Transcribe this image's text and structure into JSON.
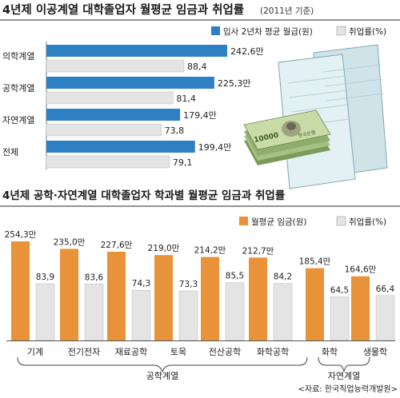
{
  "chart_data": [
    {
      "type": "bar",
      "orientation": "horizontal",
      "title": "4년제 이공계열 대학졸업자 월평균 임금과 취업률",
      "title_note": "(2011년 기준)",
      "categories": [
        "의학계열",
        "공학계열",
        "자연계열",
        "전체"
      ],
      "series": [
        {
          "name": "입사 2년차 평균 월급(원)",
          "values": [
            242.6,
            225.3,
            179.4,
            199.4
          ],
          "labels": [
            "242,6만",
            "225,3만",
            "179,4만",
            "199,4만"
          ],
          "color": "#2f7fc4"
        },
        {
          "name": "취업률(%)",
          "values": [
            88.4,
            81.4,
            73.8,
            79.1
          ],
          "labels": [
            "88,4",
            "81,4",
            "73,8",
            "79,1"
          ],
          "color": "#e4e4e4"
        }
      ],
      "legend": "top-right"
    },
    {
      "type": "bar",
      "orientation": "vertical",
      "title": "4년제 공학·자연계열 대학졸업자 학과별 월평균 임금과 취업률",
      "categories": [
        "기계",
        "전기전자",
        "재료공학",
        "토목",
        "전산공학",
        "화학공학",
        "화학",
        "생물학"
      ],
      "groups": [
        {
          "label": "공학계열",
          "categories": [
            "기계",
            "전기전자",
            "재료공학",
            "토목",
            "전산공학",
            "화학공학"
          ]
        },
        {
          "label": "자연계열",
          "categories": [
            "화학",
            "생물학"
          ]
        }
      ],
      "series": [
        {
          "name": "월평균 임금(원)",
          "values": [
            254.3,
            235.0,
            227.6,
            219.0,
            214.2,
            212.7,
            185.4,
            164.6
          ],
          "labels": [
            "254,3만",
            "235,0만",
            "227,6만",
            "219,0만",
            "214,2만",
            "212,7만",
            "185,4만",
            "164,6만"
          ],
          "color": "#e8923a"
        },
        {
          "name": "취업률(%)",
          "values": [
            83.9,
            83.6,
            74.3,
            73.3,
            85.5,
            84.2,
            64.5,
            66.4
          ],
          "labels": [
            "83,9",
            "83,6",
            "74,3",
            "73,3",
            "85,5",
            "84,2",
            "64,5",
            "66,4"
          ],
          "color": "#e4e4e4"
        }
      ],
      "legend": "top-right"
    }
  ],
  "source": "<자료: 한국직업능력개발원>",
  "illustration": {
    "bill_text": "10000",
    "bank_text": "한국은행"
  }
}
